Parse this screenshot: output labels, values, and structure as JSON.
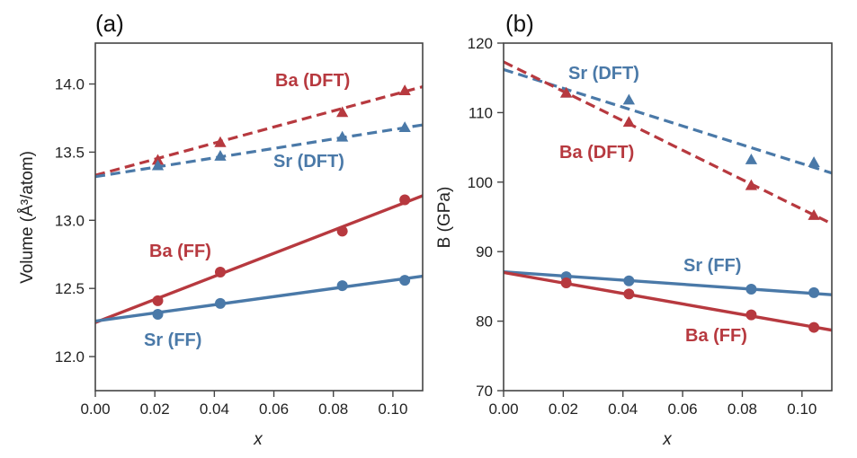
{
  "chart_data": [
    {
      "type": "scatter",
      "panel_label": "(a)",
      "xlabel": "x",
      "ylabel": "Volume (Å³/atom)",
      "xlim": [
        0.0,
        0.11
      ],
      "ylim": [
        11.75,
        14.3
      ],
      "xticks": [
        0.0,
        0.02,
        0.04,
        0.06,
        0.08,
        0.1
      ],
      "xtick_labels": [
        "0.00",
        "0.02",
        "0.04",
        "0.06",
        "0.08",
        "0.10"
      ],
      "yticks": [
        12.0,
        12.5,
        13.0,
        13.5,
        14.0
      ],
      "ytick_labels": [
        "12.0",
        "12.5",
        "13.0",
        "13.5",
        "14.0"
      ],
      "series": [
        {
          "name": "Ba (DFT)",
          "label": "Ba (DFT)",
          "color": "#b7393f",
          "marker": "triangle",
          "line": "dashed",
          "points": [
            [
              0.021,
              13.44
            ],
            [
              0.042,
              13.57
            ],
            [
              0.083,
              13.79
            ],
            [
              0.104,
              13.95
            ]
          ],
          "fit": [
            [
              0.0,
              13.33
            ],
            [
              0.11,
              13.98
            ]
          ]
        },
        {
          "name": "Sr (DFT)",
          "label": "Sr (DFT)",
          "color": "#4a79a8",
          "marker": "triangle",
          "line": "dashed",
          "points": [
            [
              0.021,
              13.4
            ],
            [
              0.042,
              13.47
            ],
            [
              0.083,
              13.61
            ],
            [
              0.104,
              13.68
            ]
          ],
          "fit": [
            [
              0.0,
              13.32
            ],
            [
              0.11,
              13.7
            ]
          ]
        },
        {
          "name": "Ba (FF)",
          "label": "Ba (FF)",
          "color": "#b7393f",
          "marker": "circle",
          "line": "solid",
          "points": [
            [
              0.021,
              12.41
            ],
            [
              0.042,
              12.62
            ],
            [
              0.083,
              12.92
            ],
            [
              0.104,
              13.15
            ]
          ],
          "fit": [
            [
              0.0,
              12.25
            ],
            [
              0.11,
              13.18
            ]
          ]
        },
        {
          "name": "Sr (FF)",
          "label": "Sr (FF)",
          "color": "#4a79a8",
          "marker": "circle",
          "line": "solid",
          "points": [
            [
              0.021,
              12.31
            ],
            [
              0.042,
              12.39
            ],
            [
              0.083,
              12.52
            ],
            [
              0.104,
              12.56
            ]
          ],
          "fit": [
            [
              0.0,
              12.26
            ],
            [
              0.11,
              12.59
            ]
          ]
        }
      ]
    },
    {
      "type": "scatter",
      "panel_label": "(b)",
      "xlabel": "x",
      "ylabel": "B (GPa)",
      "xlim": [
        0.0,
        0.11
      ],
      "ylim": [
        70,
        120
      ],
      "xticks": [
        0.0,
        0.02,
        0.04,
        0.06,
        0.08,
        0.1
      ],
      "xtick_labels": [
        "0.00",
        "0.02",
        "0.04",
        "0.06",
        "0.08",
        "0.10"
      ],
      "yticks": [
        70,
        80,
        90,
        100,
        110,
        120
      ],
      "ytick_labels": [
        "70",
        "80",
        "90",
        "100",
        "110",
        "120"
      ],
      "series": [
        {
          "name": "Sr (DFT)",
          "label": "Sr (DFT)",
          "color": "#4a79a8",
          "marker": "triangle",
          "line": "dashed",
          "points": [
            [
              0.021,
              112.8
            ],
            [
              0.042,
              111.8
            ],
            [
              0.083,
              103.2
            ],
            [
              0.104,
              102.8
            ]
          ],
          "fit": [
            [
              0.0,
              116.2
            ],
            [
              0.11,
              101.3
            ]
          ]
        },
        {
          "name": "Ba (DFT)",
          "label": "Ba (DFT)",
          "color": "#b7393f",
          "marker": "triangle",
          "line": "dashed",
          "points": [
            [
              0.021,
              112.8
            ],
            [
              0.042,
              108.6
            ],
            [
              0.083,
              99.5
            ],
            [
              0.104,
              95.2
            ]
          ],
          "fit": [
            [
              0.0,
              117.3
            ],
            [
              0.11,
              94.0
            ]
          ]
        },
        {
          "name": "Sr (FF)",
          "label": "Sr (FF)",
          "color": "#4a79a8",
          "marker": "circle",
          "line": "solid",
          "points": [
            [
              0.021,
              86.4
            ],
            [
              0.042,
              85.8
            ],
            [
              0.083,
              84.6
            ],
            [
              0.104,
              84.1
            ]
          ],
          "fit": [
            [
              0.0,
              87.1
            ],
            [
              0.11,
              83.8
            ]
          ]
        },
        {
          "name": "Ba (FF)",
          "label": "Ba (FF)",
          "color": "#b7393f",
          "marker": "circle",
          "line": "solid",
          "points": [
            [
              0.021,
              85.5
            ],
            [
              0.042,
              83.9
            ],
            [
              0.083,
              80.9
            ],
            [
              0.104,
              79.1
            ]
          ],
          "fit": [
            [
              0.0,
              87.0
            ],
            [
              0.11,
              78.7
            ]
          ]
        }
      ]
    }
  ]
}
